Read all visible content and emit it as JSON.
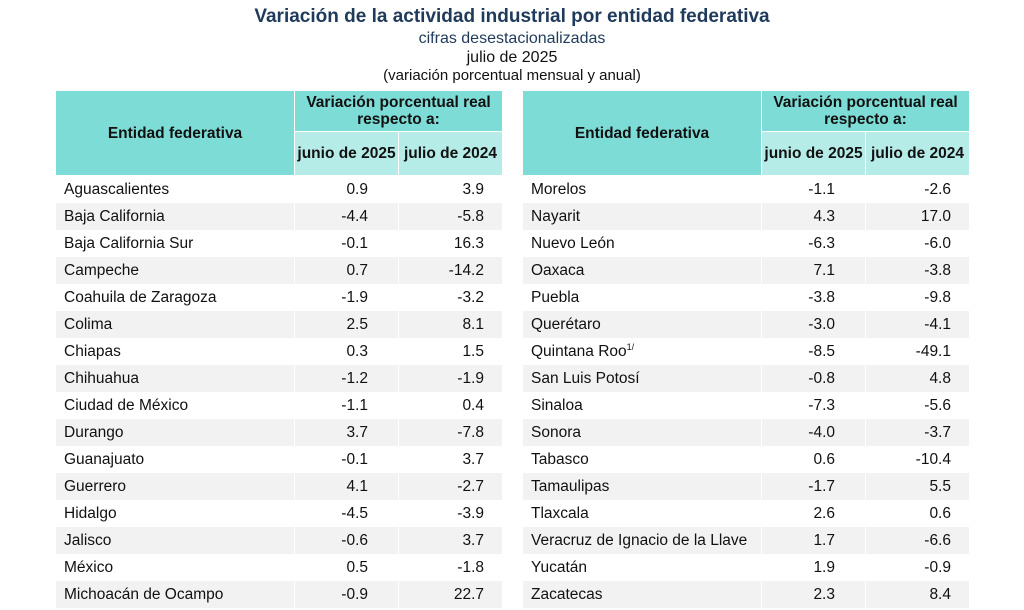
{
  "title": "Variación de la actividad industrial por entidad federativa",
  "subtitle": "cifras desestacionalizadas",
  "period": "julio de 2025",
  "note": "(variación porcentual mensual y anual)",
  "header": {
    "entity": "Entidad federativa",
    "variation": "Variación porcentual real respecto a:",
    "col1": "junio de 2025",
    "col2": "julio de 2024"
  },
  "colors": {
    "header": "#7ddcd6",
    "subheader": "#b6ece8",
    "title": "#1f3a5a",
    "alt_row": "#f2f2f2"
  },
  "left": [
    {
      "name": "Aguascalientes",
      "m": "0.9",
      "a": "3.9"
    },
    {
      "name": "Baja California",
      "m": "-4.4",
      "a": "-5.8"
    },
    {
      "name": "Baja California Sur",
      "m": "-0.1",
      "a": "16.3"
    },
    {
      "name": "Campeche",
      "m": "0.7",
      "a": "-14.2"
    },
    {
      "name": "Coahuila de Zaragoza",
      "m": "-1.9",
      "a": "-3.2"
    },
    {
      "name": "Colima",
      "m": "2.5",
      "a": "8.1"
    },
    {
      "name": "Chiapas",
      "m": "0.3",
      "a": "1.5"
    },
    {
      "name": "Chihuahua",
      "m": "-1.2",
      "a": "-1.9"
    },
    {
      "name": "Ciudad de México",
      "m": "-1.1",
      "a": "0.4"
    },
    {
      "name": "Durango",
      "m": "3.7",
      "a": "-7.8"
    },
    {
      "name": "Guanajuato",
      "m": "-0.1",
      "a": "3.7"
    },
    {
      "name": "Guerrero",
      "m": "4.1",
      "a": "-2.7"
    },
    {
      "name": "Hidalgo",
      "m": "-4.5",
      "a": "-3.9"
    },
    {
      "name": "Jalisco",
      "m": "-0.6",
      "a": "3.7"
    },
    {
      "name": "México",
      "m": "0.5",
      "a": "-1.8"
    },
    {
      "name": "Michoacán de Ocampo",
      "m": "-0.9",
      "a": "22.7"
    }
  ],
  "right": [
    {
      "name": "Morelos",
      "m": "-1.1",
      "a": "-2.6"
    },
    {
      "name": "Nayarit",
      "m": "4.3",
      "a": "17.0"
    },
    {
      "name": "Nuevo León",
      "m": "-6.3",
      "a": "-6.0"
    },
    {
      "name": "Oaxaca",
      "m": "7.1",
      "a": "-3.8"
    },
    {
      "name": "Puebla",
      "m": "-3.8",
      "a": "-9.8"
    },
    {
      "name": "Querétaro",
      "m": "-3.0",
      "a": "-4.1"
    },
    {
      "name": "Quintana Roo",
      "sup": "1/",
      "m": "-8.5",
      "a": "-49.1"
    },
    {
      "name": "San Luis Potosí",
      "m": "-0.8",
      "a": "4.8"
    },
    {
      "name": "Sinaloa",
      "m": "-7.3",
      "a": "-5.6"
    },
    {
      "name": "Sonora",
      "m": "-4.0",
      "a": "-3.7"
    },
    {
      "name": "Tabasco",
      "m": "0.6",
      "a": "-10.4"
    },
    {
      "name": "Tamaulipas",
      "m": "-1.7",
      "a": "5.5"
    },
    {
      "name": "Tlaxcala",
      "m": "2.6",
      "a": "0.6"
    },
    {
      "name": "Veracruz de Ignacio de la Llave",
      "m": "1.7",
      "a": "-6.6"
    },
    {
      "name": "Yucatán",
      "m": "1.9",
      "a": "-0.9"
    },
    {
      "name": "Zacatecas",
      "m": "2.3",
      "a": "8.4"
    }
  ]
}
